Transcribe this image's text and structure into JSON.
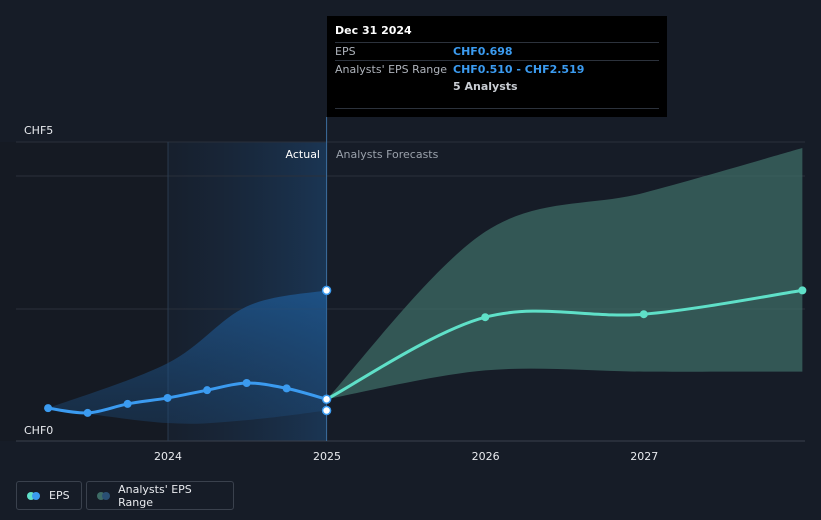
{
  "chart_data": {
    "type": "line",
    "y_axis": {
      "labels": [
        "CHF5",
        "CHF0"
      ],
      "ylim": [
        0,
        5
      ]
    },
    "x_axis": {
      "ticks": [
        "2024",
        "2025",
        "2026",
        "2027"
      ]
    },
    "divider_labels": {
      "actual": "Actual",
      "forecast": "Analysts Forecasts"
    },
    "series": [
      {
        "name": "EPS",
        "color": "#3b9bf0",
        "points": [
          {
            "x": "2023-03-31",
            "y": 0.55
          },
          {
            "x": "2023-06-30",
            "y": 0.47
          },
          {
            "x": "2023-09-30",
            "y": 0.62
          },
          {
            "x": "2023-12-31",
            "y": 0.72
          },
          {
            "x": "2024-03-31",
            "y": 0.85
          },
          {
            "x": "2024-06-30",
            "y": 0.97
          },
          {
            "x": "2024-09-30",
            "y": 0.88
          },
          {
            "x": "2024-12-31",
            "y": 0.698
          }
        ]
      },
      {
        "name": "EPS forecast",
        "color": "#5fe0c8",
        "points": [
          {
            "x": "2024-12-31",
            "y": 0.698
          },
          {
            "x": "2025-12-31",
            "y": 2.07
          },
          {
            "x": "2026-12-31",
            "y": 2.12
          },
          {
            "x": "2027-12-31",
            "y": 2.519
          }
        ]
      }
    ],
    "actual_range": {
      "name": "Analysts' EPS Range (historical)",
      "points": [
        {
          "x": "2023-03-31",
          "low": 0.55,
          "high": 0.55
        },
        {
          "x": "2023-12-31",
          "low": 0.3,
          "high": 1.3
        },
        {
          "x": "2024-06-30",
          "low": 0.35,
          "high": 2.25
        },
        {
          "x": "2024-12-31",
          "low": 0.51,
          "high": 2.519
        }
      ]
    },
    "forecast_range": {
      "name": "Analysts' EPS Range",
      "color": "#3d6b65",
      "points": [
        {
          "x": "2024-12-31",
          "low": 0.698,
          "high": 0.698
        },
        {
          "x": "2025-12-31",
          "low": 1.18,
          "high": 3.5
        },
        {
          "x": "2026-12-31",
          "low": 1.16,
          "high": 4.15
        },
        {
          "x": "2027-12-31",
          "low": 1.16,
          "high": 4.9
        }
      ]
    },
    "highlight_points": [
      {
        "x": "2024-12-31",
        "y": 2.519
      },
      {
        "x": "2024-12-31",
        "y": 0.698
      },
      {
        "x": "2024-12-31",
        "y": 0.51
      }
    ]
  },
  "tooltip": {
    "date": "Dec 31 2024",
    "eps_label": "EPS",
    "eps_value": "CHF0.698",
    "range_label": "Analysts' EPS Range",
    "range_value": "CHF0.510 - CHF2.519",
    "analysts": "5 Analysts"
  },
  "legend": {
    "eps_label": "EPS",
    "eps_colors": [
      "#5fe0c8",
      "#3b9bf0"
    ],
    "range_label": "Analysts' EPS Range",
    "range_colors": [
      "#3d6b65",
      "#2a4f73"
    ]
  }
}
